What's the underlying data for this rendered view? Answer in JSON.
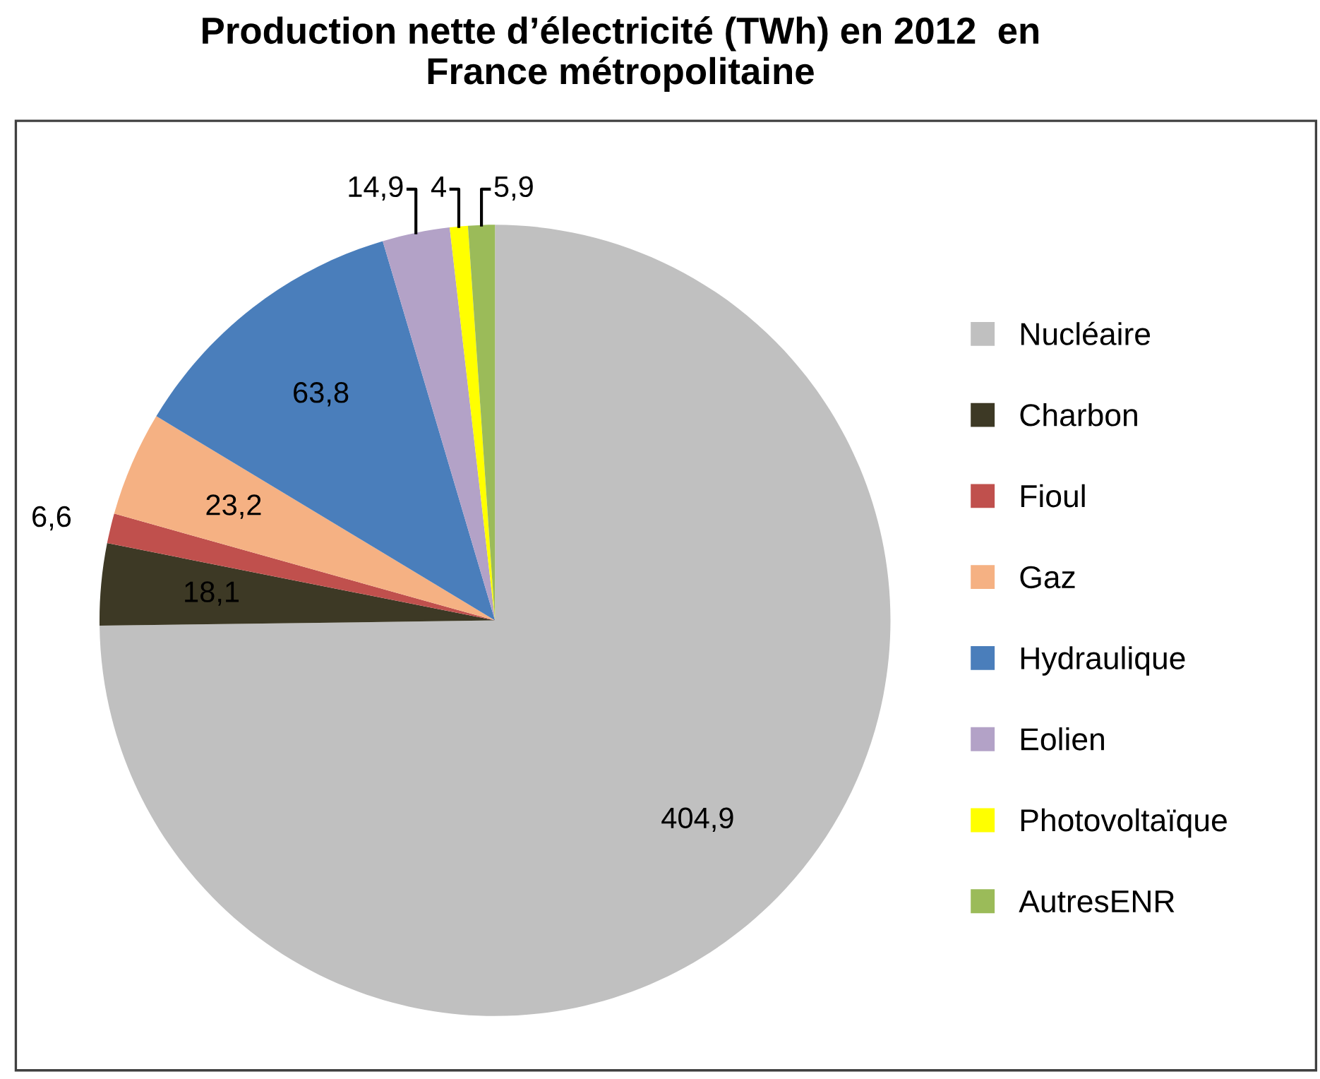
{
  "chart_data": {
    "type": "pie",
    "title": "Production nette d’électricité (TWh) en 2012  en\nFrance métropolitaine",
    "categories": [
      "Nucléaire",
      "Charbon",
      "Fioul",
      "Gaz",
      "Hydraulique",
      "Eolien",
      "Photovoltaïque",
      "AutresENR"
    ],
    "values": [
      404.9,
      18.1,
      6.6,
      23.2,
      63.8,
      14.9,
      4,
      5.9
    ],
    "value_labels": [
      "404,9",
      "18,1",
      "6,6",
      "23,2",
      "63,8",
      "14,9",
      "4",
      "5,9"
    ],
    "colors": [
      "#c0c0c0",
      "#3d3925",
      "#c0504d",
      "#f5b183",
      "#4a7ebb",
      "#b3a2c7",
      "#ffff00",
      "#9bbb59"
    ],
    "legend": "right"
  }
}
